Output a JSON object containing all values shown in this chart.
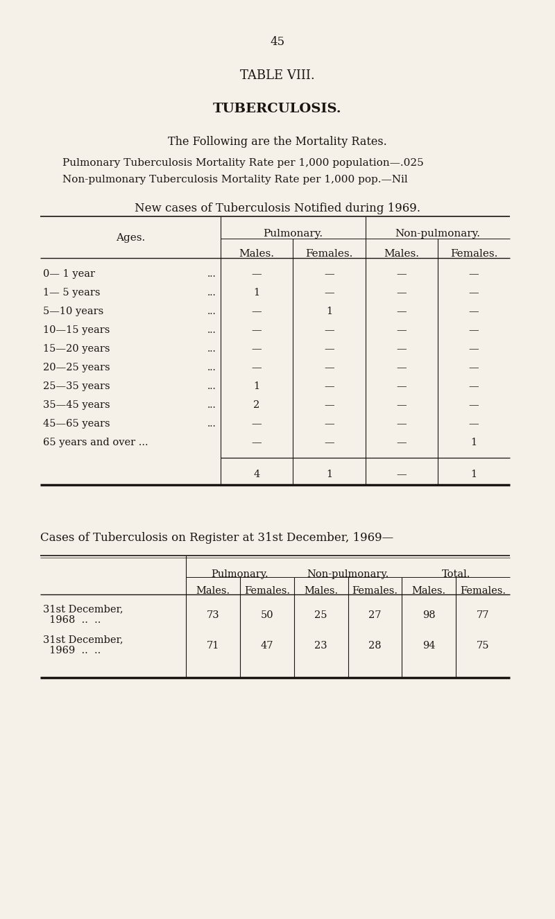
{
  "bg_color": "#f5f0e8",
  "text_color": "#1a1510",
  "page_number": "45",
  "table_title": "TABLE VIII.",
  "subtitle": "TUBERCULOSIS.",
  "heading1": "The Following are the Mortality Rates.",
  "line1": "Pulmonary Tuberculosis Mortality Rate per 1,000 population—.025",
  "line2": "Non-pulmonary Tuberculosis Mortality Rate per 1,000 pop.—Nil",
  "heading2": "New cases of Tuberculosis Notified during 1969.",
  "table1_ages": [
    "0— 1 year",
    "1— 5 years",
    "5—10 years",
    "10—15 years",
    "15—20 years",
    "20—25 years",
    "25—35 years",
    "35—45 years",
    "45—65 years",
    "65 years and over ..."
  ],
  "table1_dots": [
    "...",
    "...",
    "...",
    "...",
    "...",
    "...",
    "...",
    "...",
    "...",
    ""
  ],
  "table1_data": [
    [
      "—",
      "—",
      "—",
      "—"
    ],
    [
      "1",
      "—",
      "—",
      "—"
    ],
    [
      "—",
      "1",
      "—",
      "—"
    ],
    [
      "—",
      "—",
      "—",
      "—"
    ],
    [
      "—",
      "—",
      "—",
      "—"
    ],
    [
      "—",
      "—",
      "—",
      "—"
    ],
    [
      "1",
      "—",
      "—",
      "—"
    ],
    [
      "2",
      "—",
      "—",
      "—"
    ],
    [
      "—",
      "—",
      "—",
      "—"
    ],
    [
      "—",
      "—",
      "—",
      "1"
    ]
  ],
  "table1_totals": [
    "4",
    "1",
    "—",
    "1"
  ],
  "heading3": "Cases of Tuberculosis on Register at 31st December, 1969—",
  "table2_col_headers_bot": [
    "Males.",
    "Females.",
    "Males.",
    "Females.",
    "Males.",
    "Females."
  ],
  "table2_rows": [
    {
      "label_line1": "31st December,",
      "label_line2": "  1968  ..  ..",
      "data": [
        "73",
        "50",
        "25",
        "27",
        "98",
        "77"
      ]
    },
    {
      "label_line1": "31st December,",
      "label_line2": "  1969  ..  ..",
      "data": [
        "71",
        "47",
        "23",
        "28",
        "94",
        "75"
      ]
    }
  ]
}
